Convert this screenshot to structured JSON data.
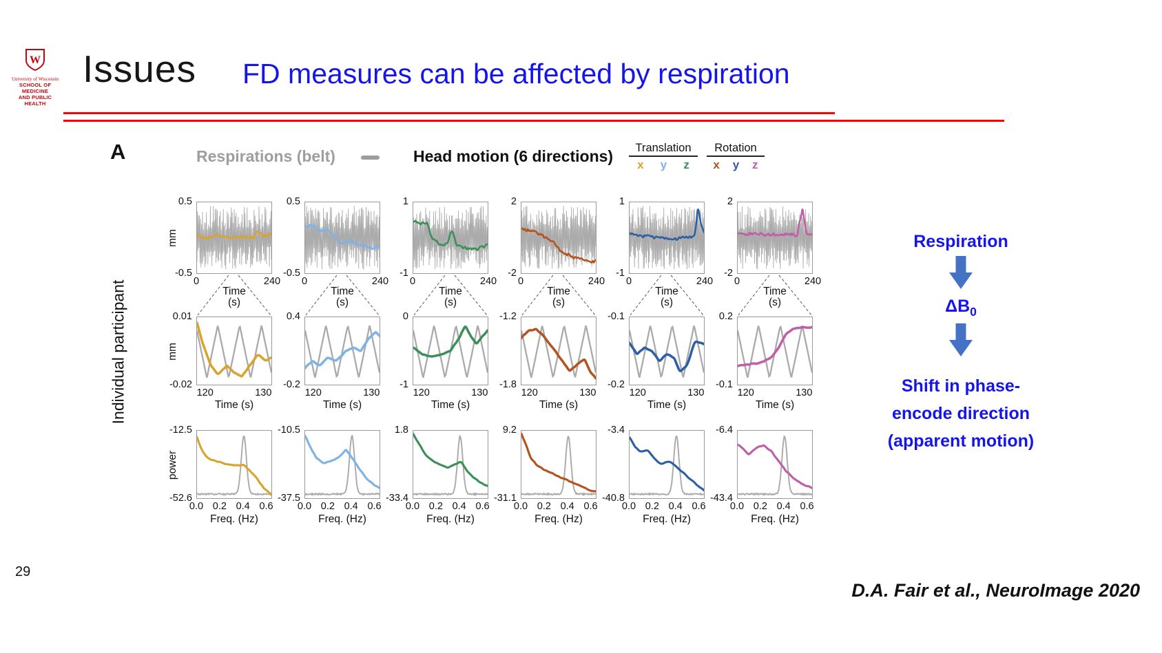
{
  "slide": {
    "page_number": "29",
    "title": "Issues",
    "subtitle": "FD measures can be affected by respiration",
    "citation": "D.A. Fair et al., NeuroImage 2020"
  },
  "logo": {
    "monogram": "W",
    "org_line1": "University of Wisconsin",
    "org_line2": "SCHOOL OF MEDICINE",
    "org_line3": "AND PUBLIC HEALTH"
  },
  "figure": {
    "panel_label": "A",
    "side_label": "Individual participant",
    "legend": {
      "respiration_label": "Respirations (belt)",
      "head_motion_label": "Head motion (6 directions)",
      "translation_label": "Translation",
      "rotation_label": "Rotation",
      "translation_letters": [
        {
          "letter": "x",
          "color": "#D9A42D"
        },
        {
          "letter": "y",
          "color": "#7FB2E5"
        },
        {
          "letter": "z",
          "color": "#3A9056"
        }
      ],
      "rotation_letters": [
        {
          "letter": "x",
          "color": "#B4531F"
        },
        {
          "letter": "y",
          "color": "#2E5FA3"
        },
        {
          "letter": "z",
          "color": "#C05FA5"
        }
      ]
    }
  },
  "flow": {
    "step1": "Respiration",
    "step2_main": "ΔB",
    "step2_sub": "0",
    "step3_lines": [
      "Shift in phase-",
      "encode direction",
      "(apparent motion)"
    ]
  },
  "colors": {
    "subtitle_blue": "#1515EB",
    "accent_red": "#FF0000",
    "arrow_blue": "#4472C4",
    "gray_trace": "#ABABAB",
    "legend_gray": "#9E9E9E",
    "uw_red": "#C5050C"
  },
  "chart_data": {
    "type": "line",
    "title": "Head motion (6 directions) vs respiration belt for one individual participant",
    "rows": [
      {
        "name": "full_timeseries",
        "ylabel": "mm",
        "xlabel_lines": [
          "Time",
          "(s)"
        ],
        "xlim": [
          0,
          240
        ],
        "xticks": [
          {
            "label": "0",
            "v": 0
          },
          {
            "label": "240",
            "v": 240
          }
        ],
        "gray_series": "respiration belt: dense oscillation spanning most of y-range"
      },
      {
        "name": "zoom_timeseries",
        "ylabel": "mm",
        "xlabel_lines": [
          "Time (s)"
        ],
        "xlim": [
          118.5,
          131.5
        ],
        "xticks": [
          {
            "label": "120",
            "v": 120
          },
          {
            "label": "130",
            "v": 130
          }
        ],
        "gray_series": "respiration belt: ~3 triangular breath cycles"
      },
      {
        "name": "power_spectrum",
        "ylabel": "power",
        "xlabel_lines": [
          "Freq. (Hz)"
        ],
        "xlim": [
          0,
          0.65
        ],
        "xticks": [
          {
            "label": "0.0",
            "v": 0
          },
          {
            "label": "0.2",
            "v": 0.2
          },
          {
            "label": "0.4",
            "v": 0.4
          },
          {
            "label": "0.6",
            "v": 0.6
          }
        ],
        "gray_series": "respiration power: sharp peak near 0.4 Hz"
      }
    ],
    "gray": {
      "row1_noise": {
        "center": 0.5,
        "amplitude": 0.9
      },
      "row2_wave": {
        "cycles": 3.4,
        "min": 0.1,
        "max": 0.88,
        "phase": 0.55
      },
      "row3_peak": {
        "x": 0.63,
        "sigma": 0.035,
        "baseline": 0.06,
        "height": 0.86
      }
    },
    "columns": [
      {
        "name": "Translation x",
        "color": "#D9A42D",
        "top": {
          "ymax": "0.5",
          "ymin": "-0.5",
          "trace": [
            [
              0,
              0.52
            ],
            [
              0.15,
              0.5
            ],
            [
              0.3,
              0.54
            ],
            [
              0.45,
              0.5
            ],
            [
              0.6,
              0.52
            ],
            [
              0.75,
              0.5
            ],
            [
              0.82,
              0.6
            ],
            [
              0.88,
              0.52
            ],
            [
              1,
              0.55
            ]
          ]
        },
        "mid": {
          "ymax": "0.01",
          "ymin": "-0.02",
          "trace": [
            [
              0,
              0.92
            ],
            [
              0.08,
              0.6
            ],
            [
              0.18,
              0.3
            ],
            [
              0.28,
              0.15
            ],
            [
              0.4,
              0.28
            ],
            [
              0.5,
              0.18
            ],
            [
              0.6,
              0.12
            ],
            [
              0.72,
              0.3
            ],
            [
              0.82,
              0.45
            ],
            [
              0.92,
              0.35
            ],
            [
              1,
              0.4
            ]
          ]
        },
        "bot": {
          "ymax": "-12.5",
          "ymin": "-52.6",
          "trace": [
            [
              0,
              0.9
            ],
            [
              0.06,
              0.72
            ],
            [
              0.14,
              0.6
            ],
            [
              0.25,
              0.55
            ],
            [
              0.35,
              0.52
            ],
            [
              0.45,
              0.5
            ],
            [
              0.55,
              0.48
            ],
            [
              0.62,
              0.5
            ],
            [
              0.7,
              0.42
            ],
            [
              0.8,
              0.3
            ],
            [
              0.9,
              0.15
            ],
            [
              1,
              0.05
            ]
          ]
        }
      },
      {
        "name": "Translation y",
        "color": "#7FB2E5",
        "top": {
          "ymax": "0.5",
          "ymin": "-0.5",
          "trace": [
            [
              0,
              0.66
            ],
            [
              0.1,
              0.68
            ],
            [
              0.2,
              0.6
            ],
            [
              0.3,
              0.62
            ],
            [
              0.4,
              0.5
            ],
            [
              0.5,
              0.42
            ],
            [
              0.6,
              0.45
            ],
            [
              0.75,
              0.4
            ],
            [
              0.9,
              0.36
            ],
            [
              1,
              0.38
            ]
          ]
        },
        "mid": {
          "ymax": "0.4",
          "ymin": "-0.2",
          "trace": [
            [
              0,
              0.25
            ],
            [
              0.1,
              0.35
            ],
            [
              0.2,
              0.28
            ],
            [
              0.3,
              0.4
            ],
            [
              0.42,
              0.35
            ],
            [
              0.55,
              0.5
            ],
            [
              0.65,
              0.55
            ],
            [
              0.75,
              0.5
            ],
            [
              0.85,
              0.68
            ],
            [
              0.95,
              0.78
            ],
            [
              1,
              0.72
            ]
          ]
        },
        "bot": {
          "ymax": "-10.5",
          "ymin": "-37.5",
          "trace": [
            [
              0,
              0.93
            ],
            [
              0.07,
              0.75
            ],
            [
              0.15,
              0.6
            ],
            [
              0.25,
              0.52
            ],
            [
              0.35,
              0.55
            ],
            [
              0.45,
              0.6
            ],
            [
              0.55,
              0.72
            ],
            [
              0.63,
              0.6
            ],
            [
              0.72,
              0.45
            ],
            [
              0.82,
              0.3
            ],
            [
              0.92,
              0.2
            ],
            [
              1,
              0.15
            ]
          ]
        }
      },
      {
        "name": "Translation z",
        "color": "#3A9056",
        "top": {
          "ymax": "1",
          "ymin": "-1",
          "trace": [
            [
              0,
              0.74
            ],
            [
              0.1,
              0.7
            ],
            [
              0.18,
              0.72
            ],
            [
              0.25,
              0.5
            ],
            [
              0.35,
              0.42
            ],
            [
              0.45,
              0.4
            ],
            [
              0.52,
              0.62
            ],
            [
              0.58,
              0.4
            ],
            [
              0.7,
              0.35
            ],
            [
              0.85,
              0.33
            ],
            [
              1,
              0.4
            ]
          ]
        },
        "mid": {
          "ymax": "0",
          "ymin": "-1",
          "trace": [
            [
              0,
              0.55
            ],
            [
              0.12,
              0.45
            ],
            [
              0.25,
              0.42
            ],
            [
              0.38,
              0.45
            ],
            [
              0.5,
              0.5
            ],
            [
              0.62,
              0.7
            ],
            [
              0.7,
              0.88
            ],
            [
              0.78,
              0.7
            ],
            [
              0.85,
              0.6
            ],
            [
              0.93,
              0.72
            ],
            [
              1,
              0.8
            ]
          ]
        },
        "bot": {
          "ymax": "1.8",
          "ymin": "-33.4",
          "trace": [
            [
              0,
              0.95
            ],
            [
              0.08,
              0.8
            ],
            [
              0.16,
              0.65
            ],
            [
              0.26,
              0.55
            ],
            [
              0.36,
              0.5
            ],
            [
              0.46,
              0.45
            ],
            [
              0.56,
              0.5
            ],
            [
              0.64,
              0.55
            ],
            [
              0.72,
              0.4
            ],
            [
              0.82,
              0.3
            ],
            [
              0.92,
              0.22
            ],
            [
              1,
              0.18
            ]
          ]
        }
      },
      {
        "name": "Rotation x",
        "color": "#B4531F",
        "top": {
          "ymax": "2",
          "ymin": "-2",
          "trace": [
            [
              0,
              0.62
            ],
            [
              0.15,
              0.6
            ],
            [
              0.3,
              0.52
            ],
            [
              0.45,
              0.42
            ],
            [
              0.55,
              0.3
            ],
            [
              0.7,
              0.22
            ],
            [
              0.8,
              0.2
            ],
            [
              0.9,
              0.15
            ],
            [
              1,
              0.17
            ]
          ]
        },
        "mid": {
          "ymax": "-1.2",
          "ymin": "-1.8",
          "trace": [
            [
              0,
              0.7
            ],
            [
              0.1,
              0.8
            ],
            [
              0.2,
              0.82
            ],
            [
              0.3,
              0.72
            ],
            [
              0.42,
              0.55
            ],
            [
              0.55,
              0.35
            ],
            [
              0.65,
              0.2
            ],
            [
              0.75,
              0.3
            ],
            [
              0.85,
              0.38
            ],
            [
              0.93,
              0.18
            ],
            [
              1,
              0.1
            ]
          ]
        },
        "bot": {
          "ymax": "9.2",
          "ymin": "-31.1",
          "trace": [
            [
              0,
              0.95
            ],
            [
              0.06,
              0.8
            ],
            [
              0.12,
              0.6
            ],
            [
              0.2,
              0.5
            ],
            [
              0.3,
              0.42
            ],
            [
              0.4,
              0.38
            ],
            [
              0.5,
              0.32
            ],
            [
              0.6,
              0.28
            ],
            [
              0.7,
              0.22
            ],
            [
              0.8,
              0.18
            ],
            [
              0.9,
              0.12
            ],
            [
              1,
              0.1
            ]
          ]
        }
      },
      {
        "name": "Rotation y",
        "color": "#2E5FA3",
        "top": {
          "ymax": "1",
          "ymin": "-1",
          "trace": [
            [
              0,
              0.55
            ],
            [
              0.2,
              0.52
            ],
            [
              0.4,
              0.5
            ],
            [
              0.6,
              0.48
            ],
            [
              0.75,
              0.5
            ],
            [
              0.88,
              0.52
            ],
            [
              0.92,
              0.95
            ],
            [
              0.96,
              0.7
            ],
            [
              1,
              0.6
            ]
          ]
        },
        "mid": {
          "ymax": "-0.1",
          "ymin": "-0.2",
          "trace": [
            [
              0,
              0.62
            ],
            [
              0.1,
              0.45
            ],
            [
              0.2,
              0.55
            ],
            [
              0.3,
              0.5
            ],
            [
              0.4,
              0.35
            ],
            [
              0.5,
              0.45
            ],
            [
              0.6,
              0.4
            ],
            [
              0.68,
              0.18
            ],
            [
              0.78,
              0.3
            ],
            [
              0.88,
              0.65
            ],
            [
              1,
              0.6
            ]
          ]
        },
        "bot": {
          "ymax": "-3.4",
          "ymin": "-40.8",
          "trace": [
            [
              0,
              0.9
            ],
            [
              0.08,
              0.75
            ],
            [
              0.16,
              0.68
            ],
            [
              0.24,
              0.72
            ],
            [
              0.32,
              0.6
            ],
            [
              0.42,
              0.5
            ],
            [
              0.52,
              0.55
            ],
            [
              0.6,
              0.5
            ],
            [
              0.7,
              0.4
            ],
            [
              0.8,
              0.3
            ],
            [
              0.9,
              0.2
            ],
            [
              1,
              0.12
            ]
          ]
        }
      },
      {
        "name": "Rotation z",
        "color": "#C05FA5",
        "top": {
          "ymax": "2",
          "ymin": "-2",
          "trace": [
            [
              0,
              0.55
            ],
            [
              0.2,
              0.56
            ],
            [
              0.4,
              0.54
            ],
            [
              0.6,
              0.55
            ],
            [
              0.8,
              0.54
            ],
            [
              0.87,
              0.92
            ],
            [
              0.92,
              0.56
            ],
            [
              1,
              0.55
            ]
          ]
        },
        "mid": {
          "ymax": "0.2",
          "ymin": "-0.1",
          "trace": [
            [
              0,
              0.28
            ],
            [
              0.15,
              0.3
            ],
            [
              0.3,
              0.32
            ],
            [
              0.45,
              0.4
            ],
            [
              0.55,
              0.55
            ],
            [
              0.65,
              0.75
            ],
            [
              0.75,
              0.83
            ],
            [
              0.85,
              0.85
            ],
            [
              1,
              0.85
            ]
          ]
        },
        "bot": {
          "ymax": "-6.4",
          "ymin": "-43.4",
          "trace": [
            [
              0,
              0.8
            ],
            [
              0.08,
              0.72
            ],
            [
              0.15,
              0.65
            ],
            [
              0.25,
              0.75
            ],
            [
              0.35,
              0.78
            ],
            [
              0.45,
              0.7
            ],
            [
              0.55,
              0.55
            ],
            [
              0.65,
              0.4
            ],
            [
              0.75,
              0.3
            ],
            [
              0.85,
              0.22
            ],
            [
              1,
              0.15
            ]
          ]
        }
      }
    ]
  }
}
